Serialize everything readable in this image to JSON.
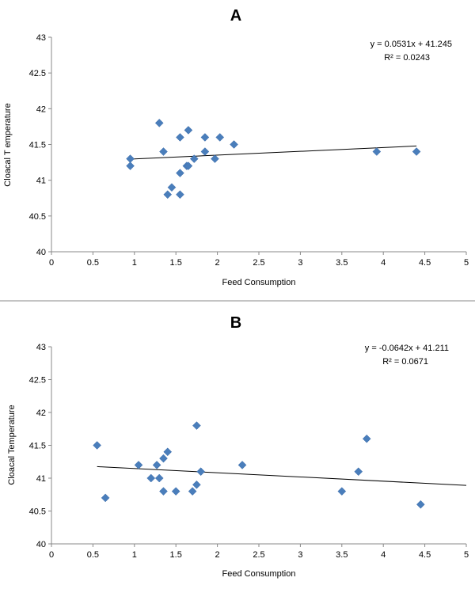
{
  "chart_data": [
    {
      "type": "scatter",
      "title": "A",
      "xlabel": "Feed Consumption",
      "ylabel": "Cloacal T emperature",
      "xlim": [
        0,
        5
      ],
      "ylim": [
        40,
        43
      ],
      "x_ticks": [
        "0",
        "0.5",
        "1",
        "1.5",
        "2",
        "2.5",
        "3",
        "3.5",
        "4",
        "4.5",
        "5"
      ],
      "y_ticks": [
        "40",
        "40.5",
        "41",
        "41.5",
        "42",
        "42.5",
        "43"
      ],
      "grid": false,
      "marker": "diamond",
      "marker_color": "#4a7ebb",
      "points": [
        [
          0.95,
          41.3
        ],
        [
          0.95,
          41.2
        ],
        [
          1.3,
          41.8
        ],
        [
          1.35,
          41.4
        ],
        [
          1.4,
          40.8
        ],
        [
          1.45,
          40.9
        ],
        [
          1.55,
          41.6
        ],
        [
          1.55,
          41.1
        ],
        [
          1.55,
          40.8
        ],
        [
          1.63,
          41.2
        ],
        [
          1.65,
          41.7
        ],
        [
          1.65,
          41.2
        ],
        [
          1.72,
          41.3
        ],
        [
          1.85,
          41.6
        ],
        [
          1.85,
          41.4
        ],
        [
          1.97,
          41.3
        ],
        [
          2.03,
          41.6
        ],
        [
          2.2,
          41.5
        ],
        [
          3.92,
          41.4
        ],
        [
          4.4,
          41.4
        ]
      ],
      "trendline": {
        "slope": 0.0531,
        "intercept": 41.245,
        "x_start": 0.95,
        "x_end": 4.4,
        "color": "#000000"
      },
      "equation": "y = 0.0531x + 41.245",
      "r_squared": "R² = 0.0243"
    },
    {
      "type": "scatter",
      "title": "B",
      "xlabel": "Feed Consumption",
      "ylabel": "Cloacal Temperature",
      "xlim": [
        0,
        5
      ],
      "ylim": [
        40,
        43
      ],
      "x_ticks": [
        "0",
        "0.5",
        "1",
        "1.5",
        "2",
        "2.5",
        "3",
        "3.5",
        "4",
        "4.5",
        "5"
      ],
      "y_ticks": [
        "40",
        "40.5",
        "41",
        "41.5",
        "42",
        "42.5",
        "43"
      ],
      "grid": false,
      "marker": "diamond",
      "marker_color": "#4a7ebb",
      "points": [
        [
          0.55,
          41.5
        ],
        [
          0.65,
          40.7
        ],
        [
          1.05,
          41.2
        ],
        [
          1.2,
          41.0
        ],
        [
          1.27,
          41.2
        ],
        [
          1.3,
          41.0
        ],
        [
          1.35,
          41.3
        ],
        [
          1.35,
          40.8
        ],
        [
          1.4,
          41.4
        ],
        [
          1.5,
          40.8
        ],
        [
          1.7,
          40.8
        ],
        [
          1.75,
          41.8
        ],
        [
          1.75,
          40.9
        ],
        [
          1.8,
          41.1
        ],
        [
          2.3,
          41.2
        ],
        [
          3.5,
          40.8
        ],
        [
          3.7,
          41.1
        ],
        [
          3.8,
          41.6
        ],
        [
          4.45,
          40.6
        ]
      ],
      "trendline": {
        "slope": -0.0642,
        "intercept": 41.211,
        "x_start": 0.55,
        "x_end": 5,
        "color": "#000000"
      },
      "equation": "y = -0.0642x + 41.211",
      "r_squared": "R² = 0.0671"
    }
  ],
  "separator_color": "#888888"
}
